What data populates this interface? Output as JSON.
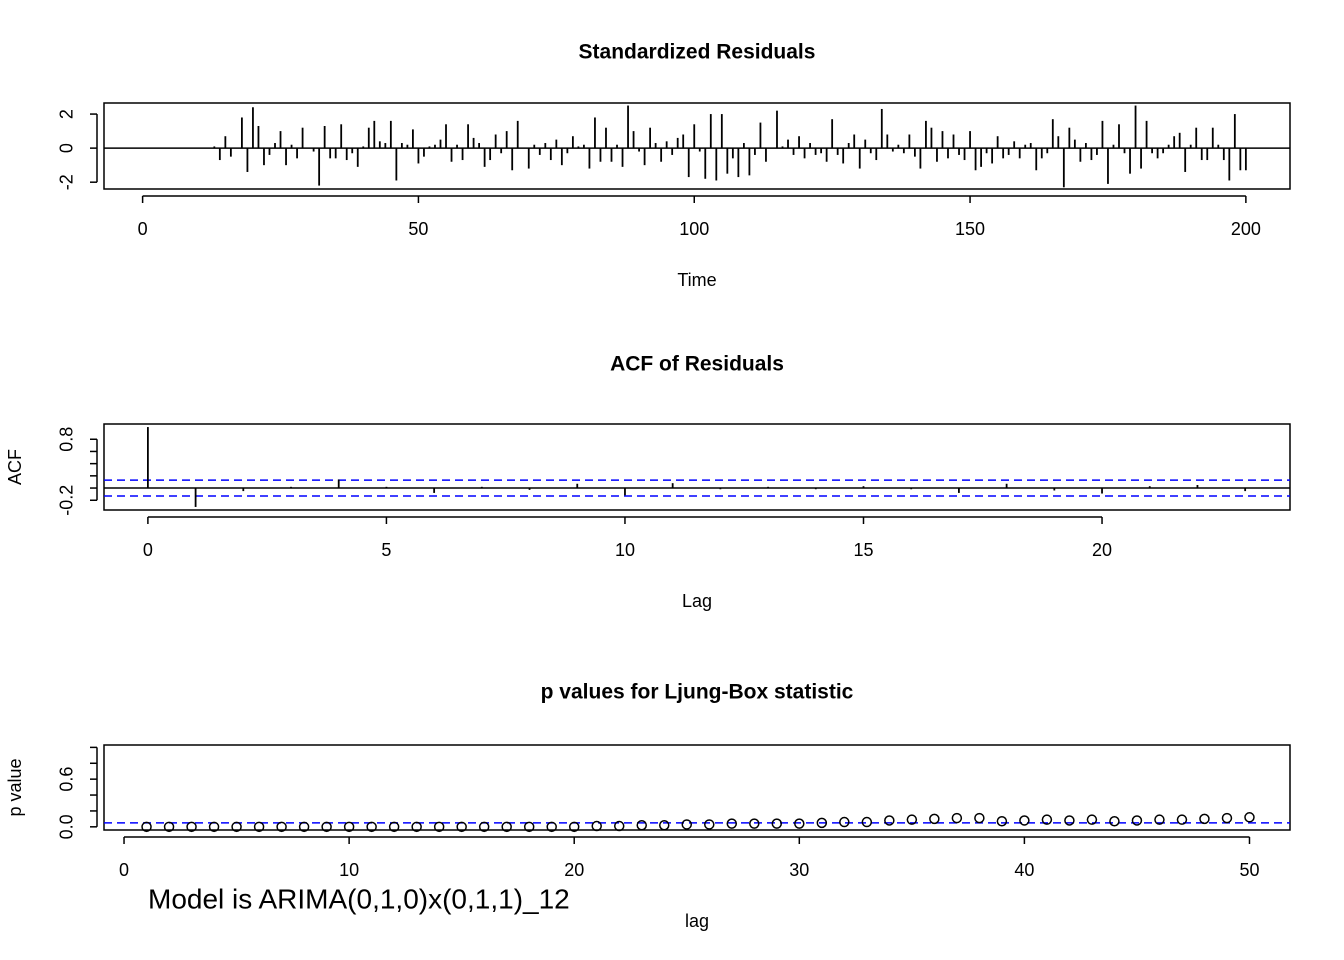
{
  "chart_data": [
    {
      "type": "bar",
      "title": "Standardized Residuals",
      "xlabel": "Time",
      "color": "#000000",
      "x": [
        1,
        2,
        3,
        4,
        5,
        6,
        7,
        8,
        9,
        10,
        11,
        12,
        13,
        14,
        15,
        16,
        17,
        18,
        19,
        20,
        21,
        22,
        23,
        24,
        25,
        26,
        27,
        28,
        29,
        30,
        31,
        32,
        33,
        34,
        35,
        36,
        37,
        38,
        39,
        40,
        41,
        42,
        43,
        44,
        45,
        46,
        47,
        48,
        49,
        50,
        51,
        52,
        53,
        54,
        55,
        56,
        57,
        58,
        59,
        60,
        61,
        62,
        63,
        64,
        65,
        66,
        67,
        68,
        69,
        70,
        71,
        72,
        73,
        74,
        75,
        76,
        77,
        78,
        79,
        80,
        81,
        82,
        83,
        84,
        85,
        86,
        87,
        88,
        89,
        90,
        91,
        92,
        93,
        94,
        95,
        96,
        97,
        98,
        99,
        100,
        101,
        102,
        103,
        104,
        105,
        106,
        107,
        108,
        109,
        110,
        111,
        112,
        113,
        114,
        115,
        116,
        117,
        118,
        119,
        120,
        121,
        122,
        123,
        124,
        125,
        126,
        127,
        128,
        129,
        130,
        131,
        132,
        133,
        134,
        135,
        136,
        137,
        138,
        139,
        140,
        141,
        142,
        143,
        144,
        145,
        146,
        147,
        148,
        149,
        150,
        151,
        152,
        153,
        154,
        155,
        156,
        157,
        158,
        159,
        160,
        161,
        162,
        163,
        164,
        165,
        166,
        167,
        168,
        169,
        170,
        171,
        172,
        173,
        174,
        175,
        176,
        177,
        178,
        179,
        180,
        181,
        182,
        183,
        184,
        185,
        186,
        187,
        188,
        189,
        190,
        191,
        192,
        193,
        194,
        195,
        196,
        197,
        198,
        199,
        200
      ],
      "values": [
        0,
        0,
        0,
        0,
        0,
        0,
        0,
        0,
        0,
        0,
        0,
        0,
        0.1,
        -0.7,
        0.7,
        -0.5,
        0,
        1.8,
        -1.4,
        2.4,
        1.3,
        -1.0,
        -0.4,
        0.3,
        1.0,
        -1.0,
        0.2,
        -0.6,
        1.2,
        0,
        -0.2,
        -2.2,
        1.3,
        -0.6,
        -0.6,
        1.4,
        -0.7,
        -0.3,
        -1.1,
        0.1,
        1.2,
        1.6,
        0.4,
        0.3,
        1.6,
        -1.9,
        0.3,
        0.2,
        1.1,
        -0.9,
        -0.5,
        0.1,
        0.2,
        0.5,
        1.4,
        -0.8,
        0.2,
        -0.7,
        1.4,
        0.6,
        0.3,
        -1.1,
        -0.7,
        0.8,
        -0.3,
        1.0,
        -1.3,
        1.6,
        0,
        -1.2,
        0.2,
        -0.4,
        0.3,
        -0.7,
        0.5,
        -1.0,
        -0.3,
        0.7,
        0.1,
        0.2,
        -1.2,
        1.8,
        -0.8,
        1.2,
        -0.8,
        0.2,
        -1.1,
        2.5,
        1.0,
        -0.2,
        -1.0,
        1.2,
        0.3,
        -0.8,
        0.4,
        -0.4,
        0.6,
        0.8,
        -1.7,
        1.4,
        -0.2,
        -1.8,
        2.0,
        -1.9,
        2.0,
        -1.5,
        -0.6,
        -1.7,
        0.3,
        -1.6,
        -0.4,
        1.5,
        -0.8,
        0,
        2.2,
        0.1,
        0.5,
        -0.4,
        0.7,
        -0.6,
        0.3,
        -0.4,
        -0.3,
        -0.8,
        1.7,
        -0.4,
        -0.9,
        0.3,
        0.8,
        -1.2,
        0.5,
        -0.3,
        -0.7,
        2.3,
        0.8,
        -0.2,
        0.2,
        -0.3,
        0.8,
        -0.5,
        -1.2,
        1.6,
        1.2,
        -0.8,
        1.0,
        -0.6,
        0.8,
        -0.4,
        -0.7,
        1.0,
        -1.3,
        -1.1,
        -0.3,
        -0.9,
        0.7,
        -0.6,
        -0.4,
        0.4,
        -0.6,
        0.2,
        0.3,
        -1.3,
        -0.6,
        -0.3,
        1.7,
        0.7,
        -2.3,
        1.2,
        0.5,
        -0.8,
        0.3,
        -0.7,
        -0.4,
        1.6,
        -2.1,
        0.2,
        1.4,
        -0.3,
        -1.5,
        2.5,
        -1.2,
        1.6,
        -0.3,
        -0.6,
        -0.3,
        0.2,
        0.7,
        0.9,
        -1.4,
        0.2,
        1.2,
        -0.7,
        -0.7,
        1.2,
        0.2,
        -0.7,
        -1.9,
        2.0,
        -1.3,
        -1.3
      ],
      "xlim": [
        -7,
        208
      ],
      "xticks": [
        0,
        50,
        100,
        150,
        200
      ],
      "ylim": [
        -2.4,
        2.65
      ],
      "yticks": [
        -2,
        0,
        2
      ],
      "hline": 0
    },
    {
      "type": "bar",
      "title": "ACF of Residuals",
      "xlabel": "Lag",
      "ylabel": "ACF",
      "color": "#000000",
      "x": [
        0,
        1,
        2,
        3,
        4,
        5,
        6,
        7,
        8,
        9,
        10,
        11,
        12,
        13,
        14,
        15,
        16,
        17,
        18,
        19,
        20,
        21,
        22,
        23
      ],
      "values": [
        1,
        -0.31,
        -0.05,
        0.02,
        0.14,
        0.02,
        -0.08,
        0.02,
        -0.03,
        0.07,
        -0.12,
        0.08,
        -0.02,
        0.02,
        -0.02,
        0.03,
        -0.02,
        -0.08,
        0.07,
        -0.04,
        -0.09,
        0.03,
        0.05,
        -0.05
      ],
      "xlim": [
        -0.92,
        23.94
      ],
      "xticks": [
        0,
        5,
        10,
        15,
        20
      ],
      "ylim": [
        -0.36,
        1.05
      ],
      "yticks": [
        -0.2,
        0.8
      ],
      "minor_yticks": [
        0,
        0.2,
        0.4,
        0.6
      ],
      "hline": 0,
      "ref_lines": [
        0.13,
        -0.13
      ],
      "ref_color": "#0000ff"
    },
    {
      "type": "scatter",
      "title": "p values for Ljung-Box statistic",
      "xlabel": "lag",
      "ylabel": "p value",
      "color": "#000000",
      "x": [
        1,
        2,
        3,
        4,
        5,
        6,
        7,
        8,
        9,
        10,
        11,
        12,
        13,
        14,
        15,
        16,
        17,
        18,
        19,
        20,
        21,
        22,
        23,
        24,
        25,
        26,
        27,
        28,
        29,
        30,
        31,
        32,
        33,
        34,
        35,
        36,
        37,
        38,
        39,
        40,
        41,
        42,
        43,
        44,
        45,
        46,
        47,
        48,
        49,
        50
      ],
      "values": [
        0,
        0,
        0,
        0,
        0,
        0,
        0,
        0,
        0,
        0,
        0,
        0,
        0,
        0,
        0,
        0,
        0,
        0,
        0,
        0,
        0.01,
        0.01,
        0.02,
        0.02,
        0.03,
        0.03,
        0.04,
        0.04,
        0.04,
        0.04,
        0.05,
        0.06,
        0.06,
        0.08,
        0.09,
        0.1,
        0.11,
        0.11,
        0.07,
        0.08,
        0.09,
        0.08,
        0.09,
        0.07,
        0.08,
        0.09,
        0.09,
        0.1,
        0.11,
        0.12
      ],
      "xlim": [
        -0.89,
        51.8
      ],
      "xticks": [
        0,
        10,
        20,
        30,
        40,
        50
      ],
      "ylim": [
        -0.04,
        1.03
      ],
      "yticks": [
        {
          "value": 0,
          "label": "0.0"
        },
        0.6
      ],
      "minor_yticks": [
        0.2,
        0.4,
        0.8,
        1.0
      ],
      "ref_lines": [
        0.05
      ],
      "ref_color": "#0000ff",
      "annotation": "Model is ARIMA(0,1,0)x(0,1,1)_12",
      "annotation_color": "#ff0000"
    }
  ]
}
